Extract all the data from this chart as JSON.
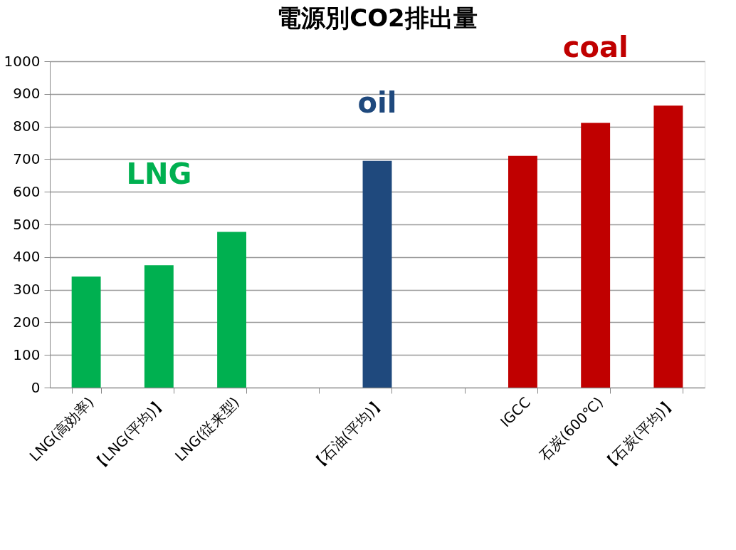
{
  "chart_data": {
    "type": "bar",
    "title": "電源別CO2排出量",
    "categories": [
      "LNG(高効率)",
      "【LNG(平均)】",
      "LNG(従来型)",
      null,
      "【石油(平均)】",
      null,
      "IGCC",
      "石炭(600℃)",
      "【石炭(平均)】"
    ],
    "series": [
      {
        "name": "LNG",
        "color": "#00b050",
        "values": [
          340,
          375,
          477,
          null,
          null,
          null,
          null,
          null,
          null
        ]
      },
      {
        "name": "oil",
        "color": "#1f497d",
        "values": [
          null,
          null,
          null,
          null,
          695,
          null,
          null,
          null,
          null
        ]
      },
      {
        "name": "coal",
        "color": "#c00000",
        "values": [
          null,
          null,
          null,
          null,
          null,
          null,
          710,
          811,
          864
        ]
      }
    ],
    "ylim": [
      0,
      1000
    ],
    "yticks": [
      0,
      100,
      200,
      300,
      400,
      500,
      600,
      700,
      800,
      900,
      1000
    ],
    "grid": "y"
  }
}
